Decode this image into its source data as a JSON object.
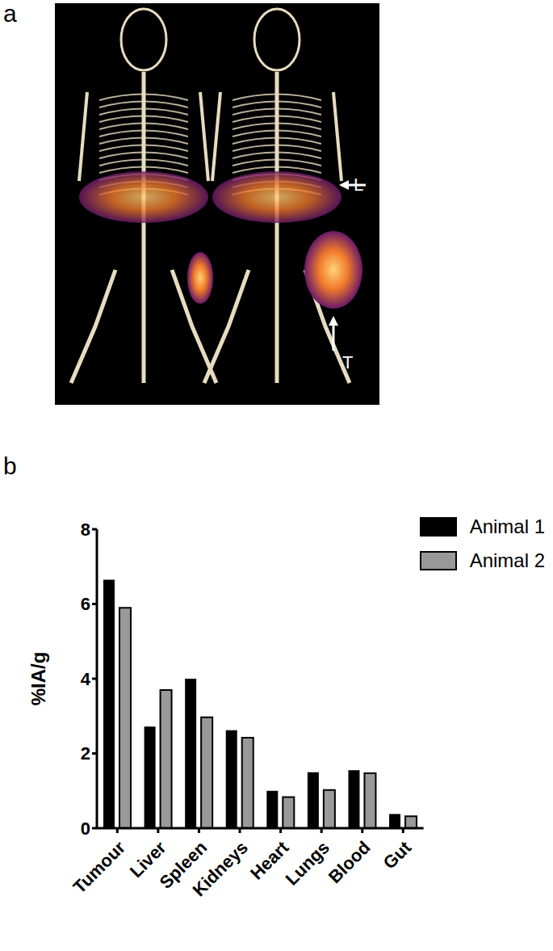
{
  "panel_labels": [
    "a",
    "b"
  ],
  "image_annotations": [
    "L",
    "T"
  ],
  "chart_data": {
    "type": "bar",
    "y_label": "%IA/g",
    "categories": [
      "Tumour",
      "Liver",
      "Spleen",
      "Kidneys",
      "Heart",
      "Lungs",
      "Blood",
      "Gut"
    ],
    "series": [
      {
        "name": "Animal 1",
        "color": "#000000",
        "values": [
          6.65,
          2.72,
          4.0,
          2.62,
          1.0,
          1.5,
          1.55,
          0.38
        ]
      },
      {
        "name": "Animal 2",
        "color": "#999999",
        "values": [
          5.9,
          3.7,
          2.97,
          2.42,
          0.83,
          1.02,
          1.47,
          0.32
        ]
      }
    ],
    "ylim": [
      0,
      8
    ],
    "yticks": [
      0,
      2,
      4,
      6,
      8
    ],
    "grid": false,
    "legend": "top-right"
  }
}
